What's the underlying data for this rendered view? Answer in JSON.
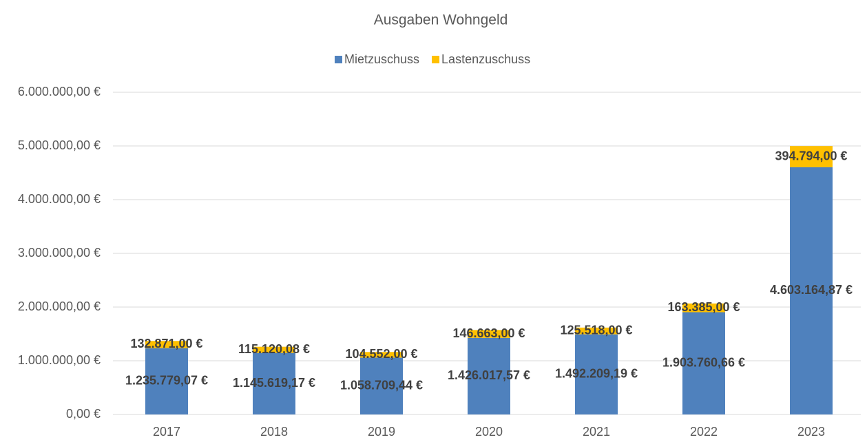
{
  "chart_data": {
    "type": "stacked_bar",
    "title": "Ausgaben Wohngeld",
    "categories": [
      "2017",
      "2018",
      "2019",
      "2020",
      "2021",
      "2022",
      "2023"
    ],
    "series": [
      {
        "name": "Mietzuschuss",
        "color": "#4f81bd",
        "values": [
          1235779.07,
          1145619.17,
          1058709.44,
          1426017.57,
          1492209.19,
          1903760.66,
          4603164.87
        ],
        "value_labels": [
          "1.235.779,07 €",
          "1.145.619,17 €",
          "1.058.709,44 €",
          "1.426.017,57 €",
          "1.492.209,19 €",
          "1.903.760,66 €",
          "4.603.164,87 €"
        ]
      },
      {
        "name": "Lastenzuschuss",
        "color": "#ffc000",
        "values": [
          132871.0,
          115120.08,
          104552.0,
          146663.0,
          125518.0,
          163385.0,
          394794.0
        ],
        "value_labels": [
          "132.871,00 €",
          "115.120,08 €",
          "104.552,00 €",
          "146.663,00 €",
          "125.518,00 €",
          "163.385,00 €",
          "394.794,00 €"
        ]
      }
    ],
    "ylim": [
      0,
      6000000
    ],
    "yticks": [
      {
        "value": 0,
        "label": "0,00 €"
      },
      {
        "value": 1000000,
        "label": "1.000.000,00 €"
      },
      {
        "value": 2000000,
        "label": "2.000.000,00 €"
      },
      {
        "value": 3000000,
        "label": "3.000.000,00 €"
      },
      {
        "value": 4000000,
        "label": "4.000.000,00 €"
      },
      {
        "value": 5000000,
        "label": "5.000.000,00 €"
      },
      {
        "value": 6000000,
        "label": "6.000.000,00 €"
      }
    ],
    "grid": true,
    "legend": "top"
  }
}
